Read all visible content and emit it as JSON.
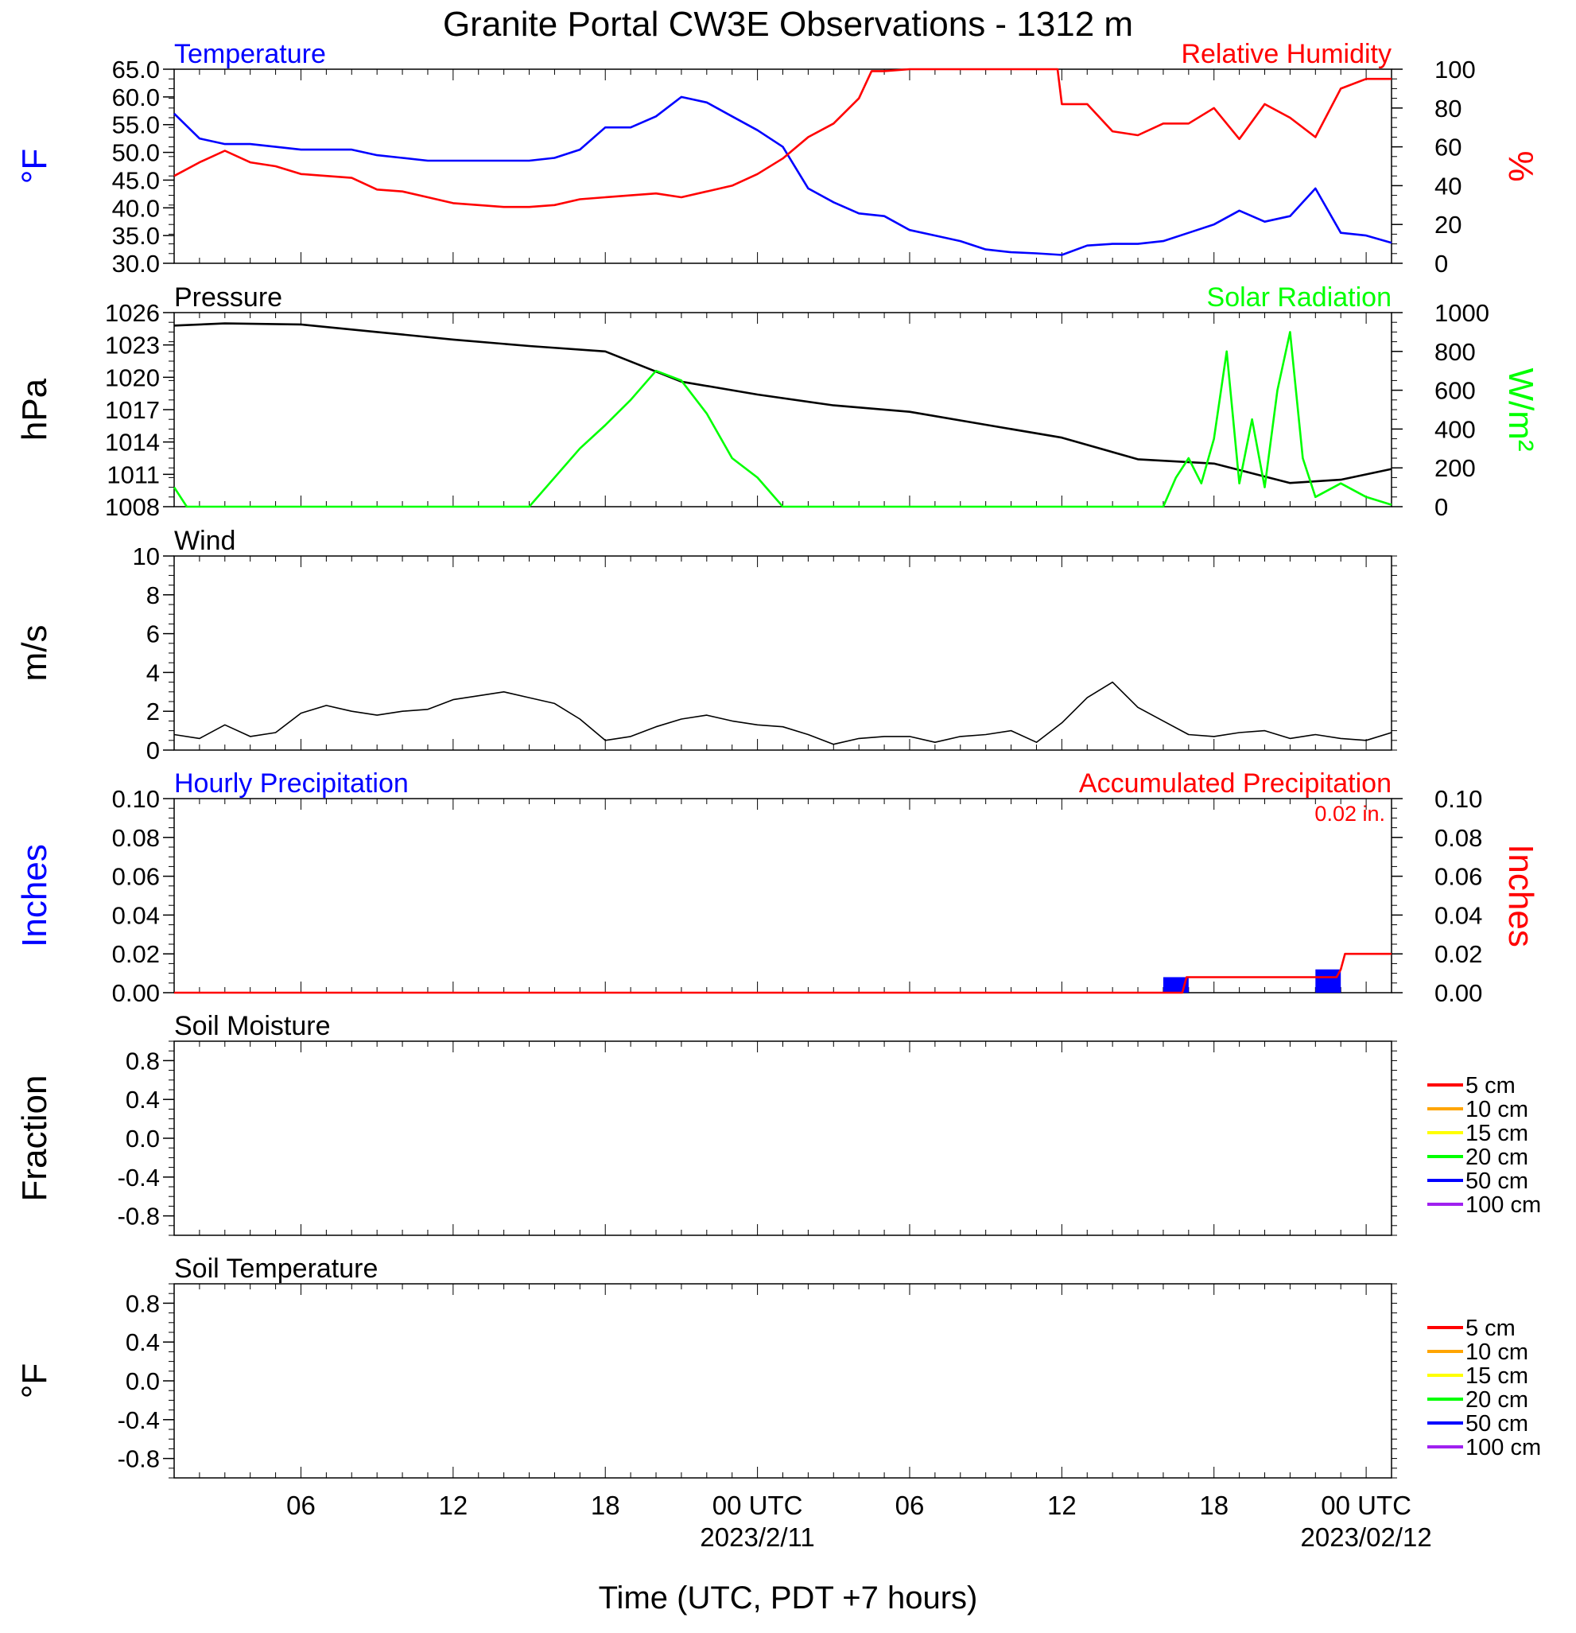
{
  "page": {
    "title": "Granite Portal CW3E Observations - 1312 m",
    "xlabel": "Time (UTC, PDT +7 hours)"
  },
  "x_axis": {
    "start": "2023-02-10T01:00Z",
    "end": "2023-02-12T01:00Z",
    "ticks": [
      {
        "time": "2023-02-10T06:00Z",
        "label": "06",
        "sub": ""
      },
      {
        "time": "2023-02-10T12:00Z",
        "label": "12",
        "sub": ""
      },
      {
        "time": "2023-02-10T18:00Z",
        "label": "18",
        "sub": ""
      },
      {
        "time": "2023-02-11T00:00Z",
        "label": "00 UTC",
        "sub": "2023/2/11"
      },
      {
        "time": "2023-02-11T06:00Z",
        "label": "06",
        "sub": ""
      },
      {
        "time": "2023-02-11T12:00Z",
        "label": "12",
        "sub": ""
      },
      {
        "time": "2023-02-11T18:00Z",
        "label": "18",
        "sub": ""
      },
      {
        "time": "2023-02-12T00:00Z",
        "label": "00 UTC",
        "sub": "2023/02/12"
      }
    ]
  },
  "colors": {
    "temperature": "#0000ff",
    "humidity": "#ff0000",
    "pressure": "#000000",
    "solar": "#00ff00",
    "wind": "#000000",
    "barbs": "#ff0000",
    "hourly_precip": "#0000ff",
    "accum_precip": "#ff0000"
  },
  "chart_data": [
    {
      "type": "line",
      "panel": "temperature-humidity",
      "title_left": "Temperature",
      "title_right": "Relative Humidity",
      "ylabel_left": "°F",
      "ylabel_right": "%",
      "ylim_left": [
        30,
        65
      ],
      "yticks_left": [
        "30.0",
        "35.0",
        "40.0",
        "45.0",
        "50.0",
        "55.0",
        "60.0",
        "65.0"
      ],
      "ylim_right": [
        0,
        100
      ],
      "yticks_right": [
        "0",
        "20",
        "40",
        "60",
        "80",
        "100"
      ],
      "series": [
        {
          "name": "Temperature",
          "axis": "left",
          "x": [
            "2023-02-10T01:00Z",
            "2023-02-10T02:00Z",
            "2023-02-10T03:00Z",
            "2023-02-10T04:00Z",
            "2023-02-10T05:00Z",
            "2023-02-10T06:00Z",
            "2023-02-10T07:00Z",
            "2023-02-10T08:00Z",
            "2023-02-10T09:00Z",
            "2023-02-10T10:00Z",
            "2023-02-10T11:00Z",
            "2023-02-10T12:00Z",
            "2023-02-10T13:00Z",
            "2023-02-10T14:00Z",
            "2023-02-10T15:00Z",
            "2023-02-10T16:00Z",
            "2023-02-10T17:00Z",
            "2023-02-10T18:00Z",
            "2023-02-10T19:00Z",
            "2023-02-10T20:00Z",
            "2023-02-10T21:00Z",
            "2023-02-10T22:00Z",
            "2023-02-10T23:00Z",
            "2023-02-11T00:00Z",
            "2023-02-11T01:00Z",
            "2023-02-11T02:00Z",
            "2023-02-11T03:00Z",
            "2023-02-11T04:00Z",
            "2023-02-11T05:00Z",
            "2023-02-11T06:00Z",
            "2023-02-11T07:00Z",
            "2023-02-11T08:00Z",
            "2023-02-11T09:00Z",
            "2023-02-11T10:00Z",
            "2023-02-11T11:00Z",
            "2023-02-11T12:00Z",
            "2023-02-11T13:00Z",
            "2023-02-11T14:00Z",
            "2023-02-11T15:00Z",
            "2023-02-11T16:00Z",
            "2023-02-11T17:00Z",
            "2023-02-11T18:00Z",
            "2023-02-11T19:00Z",
            "2023-02-11T20:00Z",
            "2023-02-11T21:00Z",
            "2023-02-11T22:00Z",
            "2023-02-11T23:00Z",
            "2023-02-12T00:00Z",
            "2023-02-12T01:00Z"
          ],
          "y": [
            57.0,
            52.5,
            51.5,
            51.5,
            51.0,
            50.5,
            50.5,
            50.5,
            49.5,
            49.0,
            48.5,
            48.5,
            48.5,
            48.5,
            48.5,
            49.0,
            50.5,
            54.5,
            54.5,
            56.5,
            60.0,
            59.0,
            56.5,
            54.0,
            51.0,
            43.5,
            41.0,
            39.0,
            38.5,
            36.0,
            35.0,
            34.0,
            32.5,
            32.0,
            31.8,
            31.5,
            33.2,
            33.5,
            33.5,
            34.0,
            35.5,
            37.0,
            39.5,
            37.5,
            38.5,
            43.5,
            35.5,
            35.0,
            33.7
          ]
        },
        {
          "name": "Relative Humidity",
          "axis": "right",
          "x": [
            "2023-02-10T01:00Z",
            "2023-02-10T02:00Z",
            "2023-02-10T03:00Z",
            "2023-02-10T04:00Z",
            "2023-02-10T05:00Z",
            "2023-02-10T06:00Z",
            "2023-02-10T07:00Z",
            "2023-02-10T08:00Z",
            "2023-02-10T09:00Z",
            "2023-02-10T10:00Z",
            "2023-02-10T11:00Z",
            "2023-02-10T12:00Z",
            "2023-02-10T13:00Z",
            "2023-02-10T14:00Z",
            "2023-02-10T15:00Z",
            "2023-02-10T16:00Z",
            "2023-02-10T17:00Z",
            "2023-02-10T18:00Z",
            "2023-02-10T19:00Z",
            "2023-02-10T20:00Z",
            "2023-02-10T21:00Z",
            "2023-02-10T22:00Z",
            "2023-02-10T23:00Z",
            "2023-02-11T00:00Z",
            "2023-02-11T01:00Z",
            "2023-02-11T02:00Z",
            "2023-02-11T03:00Z",
            "2023-02-11T04:00Z",
            "2023-02-11T04:30Z",
            "2023-02-11T05:00Z",
            "2023-02-11T06:00Z",
            "2023-02-11T08:00Z",
            "2023-02-11T10:00Z",
            "2023-02-11T11:50Z",
            "2023-02-11T12:00Z",
            "2023-02-11T13:00Z",
            "2023-02-11T14:00Z",
            "2023-02-11T15:00Z",
            "2023-02-11T16:00Z",
            "2023-02-11T17:00Z",
            "2023-02-11T18:00Z",
            "2023-02-11T19:00Z",
            "2023-02-11T20:00Z",
            "2023-02-11T21:00Z",
            "2023-02-11T22:00Z",
            "2023-02-11T23:00Z",
            "2023-02-12T00:00Z",
            "2023-02-12T01:00Z"
          ],
          "y": [
            45,
            52,
            58,
            52,
            50,
            46,
            45,
            44,
            38,
            37,
            34,
            31,
            30,
            29,
            29,
            30,
            33,
            34,
            35,
            36,
            34,
            37,
            40,
            46,
            54,
            65,
            72,
            85,
            99,
            99,
            100,
            100,
            100,
            100,
            82,
            82,
            68,
            66,
            72,
            72,
            80,
            64,
            82,
            75,
            65,
            90,
            95,
            95
          ]
        }
      ]
    },
    {
      "type": "line",
      "panel": "pressure-solar",
      "title_left": "Pressure",
      "title_right": "Solar Radiation",
      "ylabel_left": "hPa",
      "ylabel_right": "W/m²",
      "ylim_left": [
        1008,
        1026
      ],
      "yticks_left": [
        "1008",
        "1011",
        "1014",
        "1017",
        "1020",
        "1023",
        "1026"
      ],
      "ylim_right": [
        0,
        1000
      ],
      "yticks_right": [
        "0",
        "200",
        "400",
        "600",
        "800",
        "1000"
      ],
      "series": [
        {
          "name": "Pressure",
          "axis": "left",
          "x": [
            "2023-02-10T01:00Z",
            "2023-02-10T03:00Z",
            "2023-02-10T06:00Z",
            "2023-02-10T09:00Z",
            "2023-02-10T12:00Z",
            "2023-02-10T15:00Z",
            "2023-02-10T18:00Z",
            "2023-02-10T21:00Z",
            "2023-02-11T00:00Z",
            "2023-02-11T03:00Z",
            "2023-02-11T06:00Z",
            "2023-02-11T09:00Z",
            "2023-02-11T12:00Z",
            "2023-02-11T15:00Z",
            "2023-02-11T18:00Z",
            "2023-02-11T21:00Z",
            "2023-02-11T23:00Z",
            "2023-02-12T01:00Z"
          ],
          "y": [
            1024.8,
            1025.0,
            1024.9,
            1024.2,
            1023.5,
            1022.9,
            1022.4,
            1019.6,
            1018.4,
            1017.4,
            1016.8,
            1015.6,
            1014.4,
            1012.4,
            1012.0,
            1010.2,
            1010.5,
            1011.5
          ]
        },
        {
          "name": "Solar Radiation",
          "axis": "right",
          "x": [
            "2023-02-10T01:00Z",
            "2023-02-10T01:30Z",
            "2023-02-10T15:00Z",
            "2023-02-10T17:00Z",
            "2023-02-10T18:00Z",
            "2023-02-10T19:00Z",
            "2023-02-10T20:00Z",
            "2023-02-10T21:00Z",
            "2023-02-10T22:00Z",
            "2023-02-10T23:00Z",
            "2023-02-11T00:00Z",
            "2023-02-11T01:00Z",
            "2023-02-11T16:00Z",
            "2023-02-11T16:30Z",
            "2023-02-11T17:00Z",
            "2023-02-11T17:30Z",
            "2023-02-11T18:00Z",
            "2023-02-11T18:30Z",
            "2023-02-11T19:00Z",
            "2023-02-11T19:30Z",
            "2023-02-11T20:00Z",
            "2023-02-11T20:30Z",
            "2023-02-11T21:00Z",
            "2023-02-11T21:30Z",
            "2023-02-11T22:00Z",
            "2023-02-11T23:00Z",
            "2023-02-12T00:00Z",
            "2023-02-12T01:00Z"
          ],
          "y": [
            100,
            0,
            0,
            300,
            420,
            550,
            700,
            650,
            480,
            250,
            150,
            0,
            0,
            150,
            250,
            120,
            350,
            800,
            120,
            450,
            100,
            600,
            900,
            250,
            50,
            120,
            50,
            10
          ]
        }
      ]
    },
    {
      "type": "line",
      "panel": "wind",
      "title_left": "Wind",
      "ylabel_left": "m/s",
      "ylim_left": [
        0,
        10
      ],
      "yticks_left": [
        "0",
        "2",
        "4",
        "6",
        "8",
        "10"
      ],
      "series": [
        {
          "name": "Wind",
          "axis": "left",
          "x": [
            "2023-02-10T01:00Z",
            "2023-02-10T02:00Z",
            "2023-02-10T03:00Z",
            "2023-02-10T04:00Z",
            "2023-02-10T05:00Z",
            "2023-02-10T06:00Z",
            "2023-02-10T07:00Z",
            "2023-02-10T08:00Z",
            "2023-02-10T09:00Z",
            "2023-02-10T10:00Z",
            "2023-02-10T11:00Z",
            "2023-02-10T12:00Z",
            "2023-02-10T13:00Z",
            "2023-02-10T14:00Z",
            "2023-02-10T15:00Z",
            "2023-02-10T16:00Z",
            "2023-02-10T17:00Z",
            "2023-02-10T18:00Z",
            "2023-02-10T19:00Z",
            "2023-02-10T20:00Z",
            "2023-02-10T21:00Z",
            "2023-02-10T22:00Z",
            "2023-02-10T23:00Z",
            "2023-02-11T00:00Z",
            "2023-02-11T01:00Z",
            "2023-02-11T02:00Z",
            "2023-02-11T03:00Z",
            "2023-02-11T04:00Z",
            "2023-02-11T05:00Z",
            "2023-02-11T06:00Z",
            "2023-02-11T07:00Z",
            "2023-02-11T08:00Z",
            "2023-02-11T09:00Z",
            "2023-02-11T10:00Z",
            "2023-02-11T11:00Z",
            "2023-02-11T12:00Z",
            "2023-02-11T13:00Z",
            "2023-02-11T14:00Z",
            "2023-02-11T15:00Z",
            "2023-02-11T16:00Z",
            "2023-02-11T17:00Z",
            "2023-02-11T18:00Z",
            "2023-02-11T19:00Z",
            "2023-02-11T20:00Z",
            "2023-02-11T21:00Z",
            "2023-02-11T22:00Z",
            "2023-02-11T23:00Z",
            "2023-02-12T00:00Z",
            "2023-02-12T01:00Z"
          ],
          "y": [
            0.8,
            0.6,
            1.3,
            0.7,
            0.9,
            1.9,
            2.3,
            2.0,
            1.8,
            2.0,
            2.1,
            2.6,
            2.8,
            3.0,
            2.7,
            2.4,
            1.6,
            0.5,
            0.7,
            1.2,
            1.6,
            1.8,
            1.5,
            1.3,
            1.2,
            0.8,
            0.3,
            0.6,
            0.7,
            0.7,
            0.4,
            0.7,
            0.8,
            1.0,
            0.4,
            1.4,
            2.7,
            3.5,
            2.2,
            1.5,
            0.8,
            0.7,
            0.9,
            1.0,
            0.6,
            0.8,
            0.6,
            0.5,
            0.9
          ]
        }
      ]
    },
    {
      "type": "bar",
      "panel": "precipitation",
      "title_left": "Hourly Precipitation",
      "title_right": "Accumulated Precipitation",
      "total_label": "0.02 in.",
      "ylabel_left": "Inches",
      "ylabel_right": "Inches",
      "ylim_left": [
        0,
        0.1
      ],
      "yticks_left": [
        "0.00",
        "0.02",
        "0.04",
        "0.06",
        "0.08",
        "0.10"
      ],
      "ylim_right": [
        0,
        0.1
      ],
      "yticks_right": [
        "0.00",
        "0.02",
        "0.04",
        "0.06",
        "0.08",
        "0.10"
      ],
      "series": [
        {
          "name": "Hourly Precipitation",
          "type": "bar",
          "x": [
            "2023-02-11T16:00Z",
            "2023-02-11T22:00Z"
          ],
          "values": [
            0.008,
            0.012
          ]
        },
        {
          "name": "Accumulated Precipitation",
          "type": "line",
          "x": [
            "2023-02-10T01:00Z",
            "2023-02-11T16:45Z",
            "2023-02-11T16:55Z",
            "2023-02-11T22:50Z",
            "2023-02-11T23:00Z",
            "2023-02-11T23:10Z",
            "2023-02-12T01:00Z"
          ],
          "y": [
            0.0,
            0.0,
            0.008,
            0.008,
            0.012,
            0.02,
            0.02
          ]
        }
      ]
    },
    {
      "type": "line",
      "panel": "soil-moisture",
      "title_left": "Soil Moisture",
      "ylabel_left": "Fraction",
      "ylim_left": [
        -1.0,
        1.0
      ],
      "yticks_left": [
        "-0.8",
        "-0.4",
        "0.0",
        "0.4",
        "0.8"
      ],
      "legend": [
        "5 cm",
        "10 cm",
        "15 cm",
        "20 cm",
        "50 cm",
        "100 cm"
      ],
      "legend_colors": [
        "#ff0000",
        "#ffa500",
        "#ffff00",
        "#00ff00",
        "#0000ff",
        "#a020f0"
      ],
      "series": []
    },
    {
      "type": "line",
      "panel": "soil-temperature",
      "title_left": "Soil Temperature",
      "ylabel_left": "°F",
      "ylim_left": [
        -1.0,
        1.0
      ],
      "yticks_left": [
        "-0.8",
        "-0.4",
        "0.0",
        "0.4",
        "0.8"
      ],
      "legend": [
        "5 cm",
        "10 cm",
        "15 cm",
        "20 cm",
        "50 cm",
        "100 cm"
      ],
      "legend_colors": [
        "#ff0000",
        "#ffa500",
        "#ffff00",
        "#00ff00",
        "#0000ff",
        "#a020f0"
      ],
      "series": []
    }
  ]
}
